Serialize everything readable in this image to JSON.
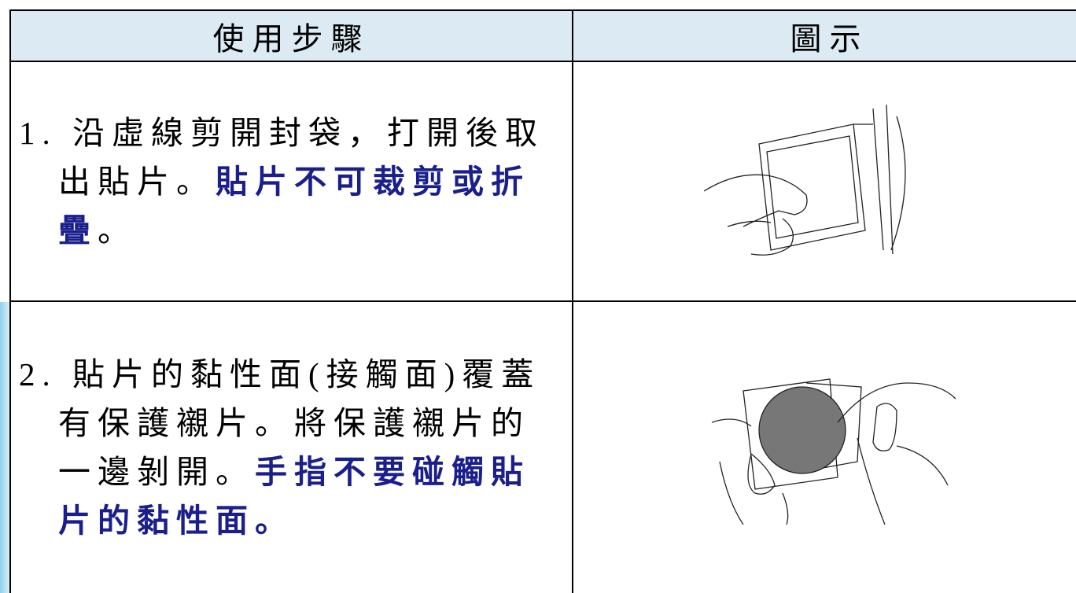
{
  "table": {
    "header": [
      "使用步驟",
      "圖示"
    ],
    "rows": [
      {
        "segments": [
          {
            "text": "1. 沿虛線剪開封袋，打開後取出貼片。",
            "emphasis": false
          },
          {
            "text": "貼片不可裁剪或折疊",
            "emphasis": true
          },
          {
            "text": "。",
            "emphasis": false
          }
        ]
      },
      {
        "segments": [
          {
            "text": "2. 貼片的黏性面(接觸面)覆蓋有保護襯片。將保護襯片的一邊剝開。",
            "emphasis": false
          },
          {
            "text": "手指不要碰觸貼片的黏性面。",
            "emphasis": true
          }
        ]
      }
    ]
  }
}
